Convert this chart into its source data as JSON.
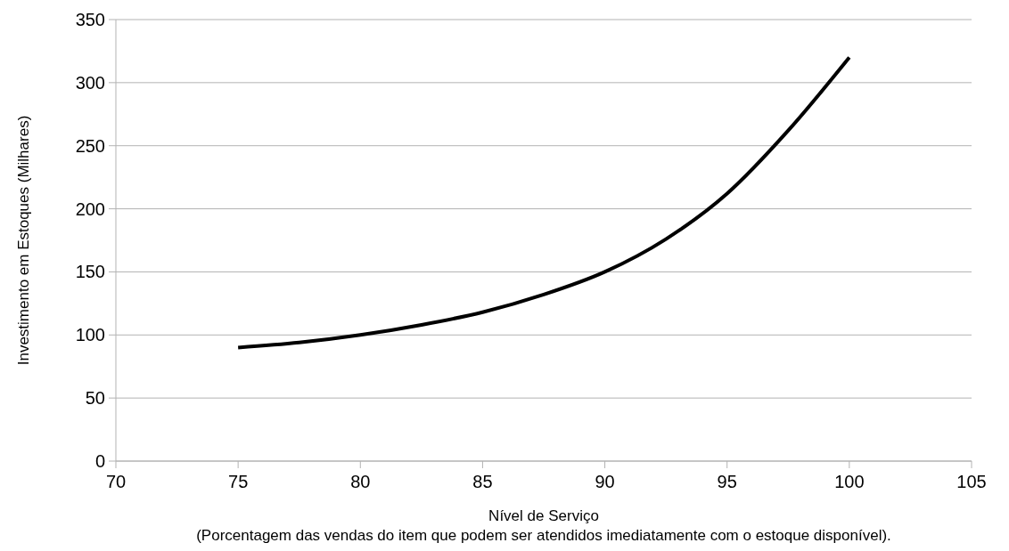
{
  "chart_data": {
    "type": "line",
    "xlabel": "Nível de Serviço",
    "ylabel": "Investimento em Estoques (Milhares)",
    "annotations": [
      "(Porcentagem das vendas do item que podem ser atendidos imediatamente com o estoque disponível)."
    ],
    "x": [
      75,
      77.5,
      80,
      82.5,
      85,
      87.5,
      90,
      92.5,
      95,
      97.5,
      100
    ],
    "series": [
      {
        "color": "#000000",
        "values": [
          90,
          94,
          100,
          108,
          118,
          132,
          150,
          176,
          212,
          262,
          320
        ]
      }
    ],
    "xlim": [
      70,
      105
    ],
    "xticks": [
      70,
      75,
      80,
      85,
      90,
      95,
      100,
      105
    ],
    "ylim": [
      0,
      350
    ],
    "yticks": [
      0,
      50,
      100,
      150,
      200,
      250,
      300,
      350
    ],
    "grid": "y",
    "marker": "none",
    "line_style": "solid"
  }
}
